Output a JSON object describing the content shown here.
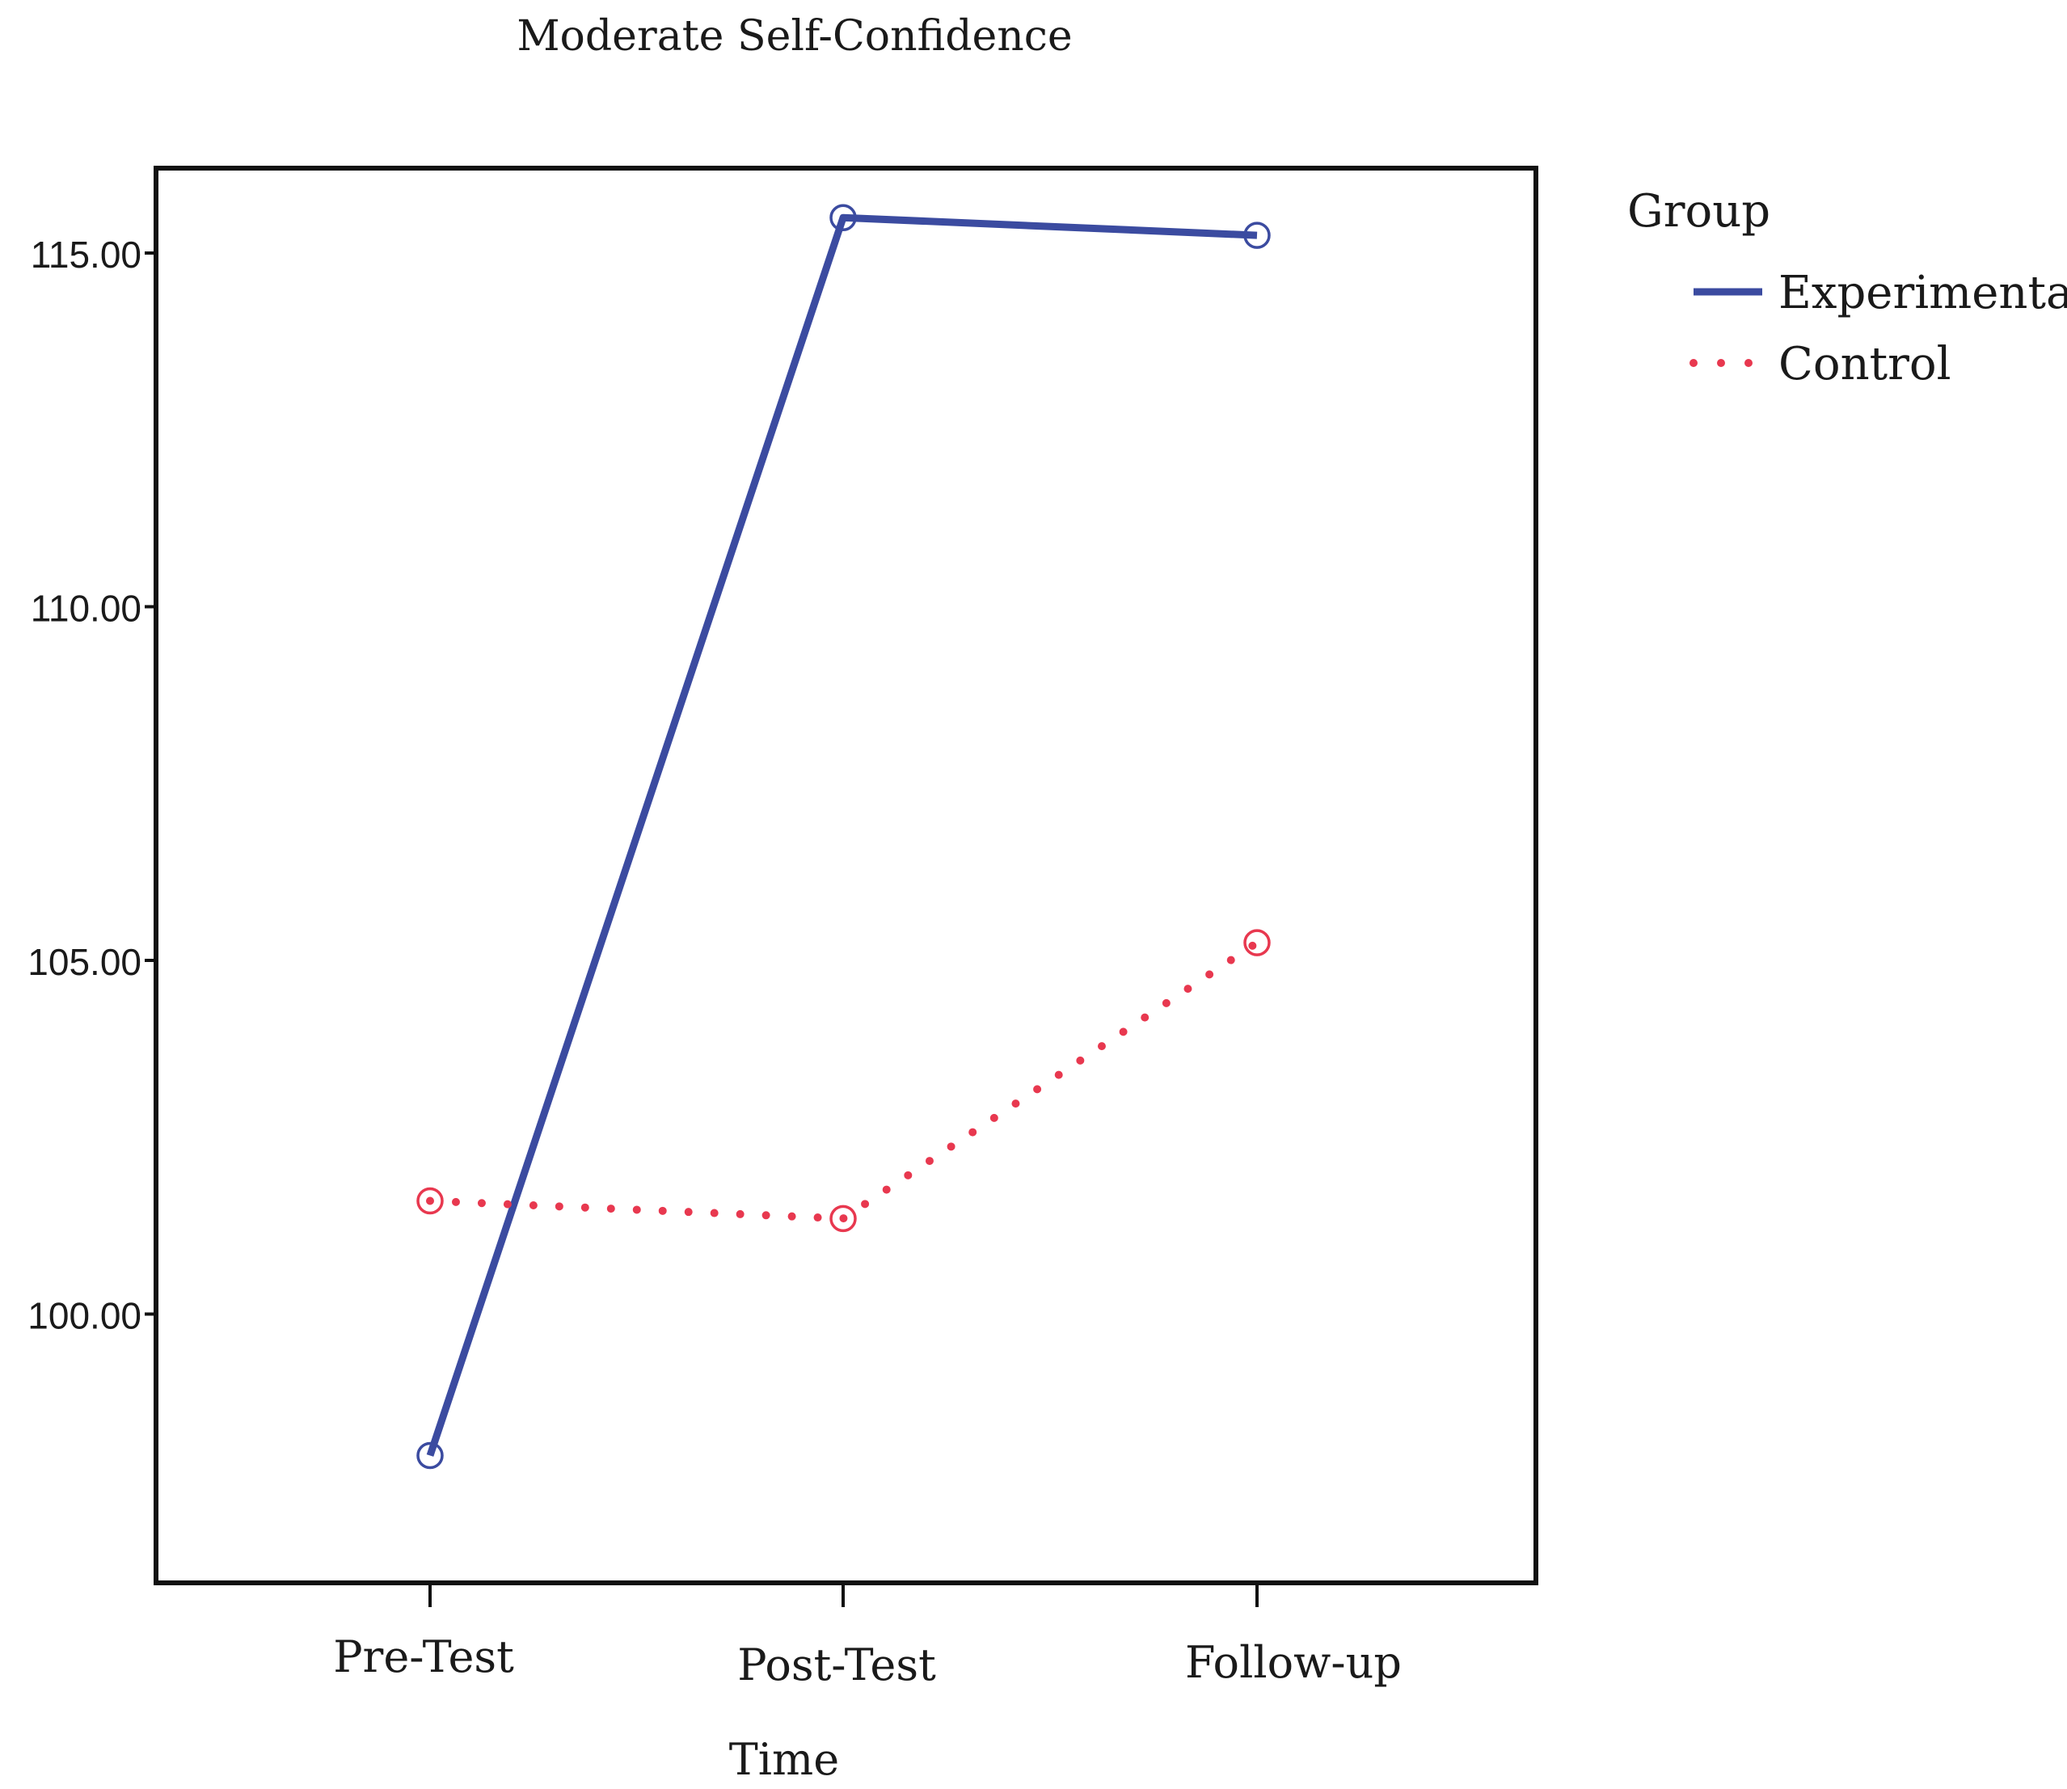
{
  "chart_data": {
    "type": "line",
    "title": "Moderate Self-Confidence",
    "xlabel": "Time",
    "ylabel": "",
    "categories": [
      "Pre-Test",
      "Post-Test",
      "Follow-up"
    ],
    "ylim": [
      96.2,
      116.2
    ],
    "yticks": [
      100,
      105,
      110,
      115
    ],
    "ytick_labels": [
      "100.00",
      "105.00",
      "110.00",
      "115.00"
    ],
    "grid": false,
    "legend": {
      "title": "Group",
      "placement": "right-top"
    },
    "series": [
      {
        "name": "Experimental",
        "values": [
          98.0,
          115.5,
          115.25
        ],
        "color": "#3b4ba0",
        "style": "solid",
        "marker": "open-circle"
      },
      {
        "name": "Control",
        "values": [
          101.6,
          101.35,
          105.25
        ],
        "color": "#e8384f",
        "style": "dotted",
        "marker": "open-circle"
      }
    ]
  }
}
